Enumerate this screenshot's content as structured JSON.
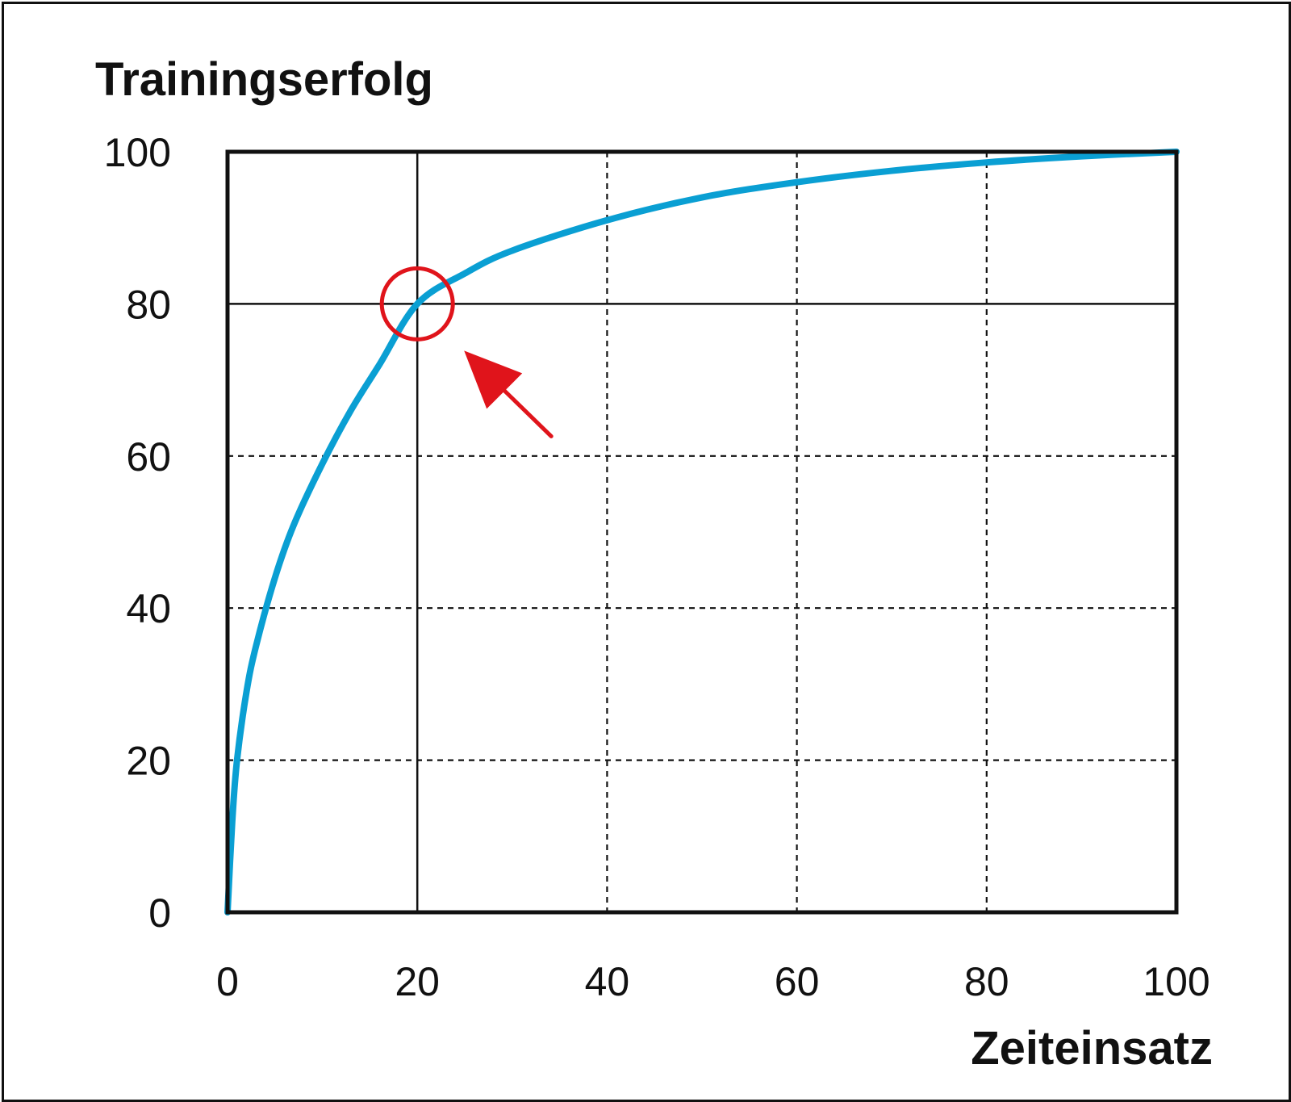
{
  "chart_data": {
    "type": "line",
    "ylabel": "Trainingserfolg",
    "xlabel": "Zeiteinsatz",
    "xlim": [
      0,
      100
    ],
    "ylim": [
      0,
      100
    ],
    "x_ticks": [
      "0",
      "20",
      "40",
      "60",
      "80",
      "100"
    ],
    "y_ticks": [
      "0",
      "20",
      "40",
      "60",
      "80",
      "100"
    ],
    "grid": true,
    "series": [
      {
        "color": "#0a9fd3",
        "x": [
          0,
          0.5,
          1,
          2,
          3,
          5,
          7,
          10,
          13,
          16,
          20,
          25,
          30,
          40,
          50,
          60,
          70,
          80,
          90,
          100
        ],
        "y": [
          0,
          12,
          20,
          29,
          35,
          44,
          51,
          59,
          66,
          72,
          80,
          84,
          87,
          91,
          94,
          96,
          97.5,
          98.6,
          99.4,
          100
        ]
      }
    ],
    "reference_lines": {
      "x": 20,
      "y": 80,
      "color": "#111111"
    },
    "highlight": {
      "x": 20,
      "y": 80,
      "color": "#e0141b",
      "marker": "circle",
      "arrow": true
    }
  }
}
